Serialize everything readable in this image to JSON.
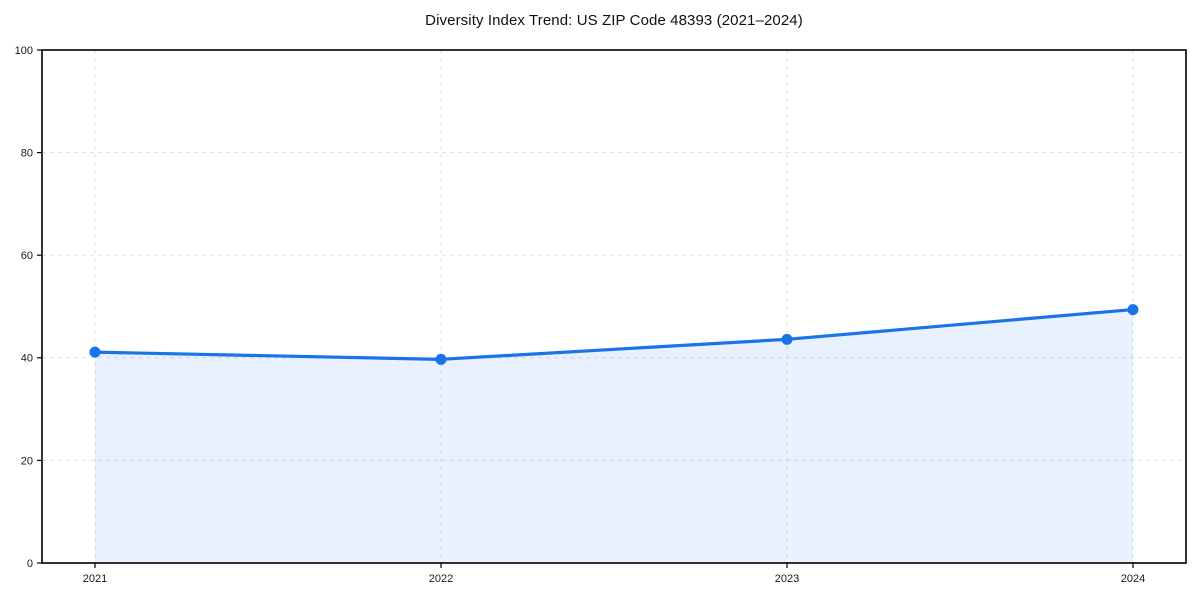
{
  "chart_data": {
    "type": "area",
    "title": "Diversity Index Trend: US ZIP Code 48393 (2021–2024)",
    "categories": [
      "2021",
      "2022",
      "2023",
      "2024"
    ],
    "series": [
      {
        "name": "Diversity Index",
        "values": [
          41.1,
          39.7,
          43.6,
          49.4
        ]
      }
    ],
    "xlabel": "",
    "ylabel": "",
    "ylim": [
      0,
      100
    ],
    "yticks": [
      0,
      20,
      40,
      60,
      80,
      100
    ],
    "grid": "both-dashed",
    "legend_position": "none",
    "colors": {
      "line": "#1a73e8",
      "marker": "#1a73e8",
      "fill": "rgba(26,115,232,0.10)",
      "grid": "#e0e0e0",
      "axis": "#000000",
      "text": "#1a1a1a"
    }
  }
}
